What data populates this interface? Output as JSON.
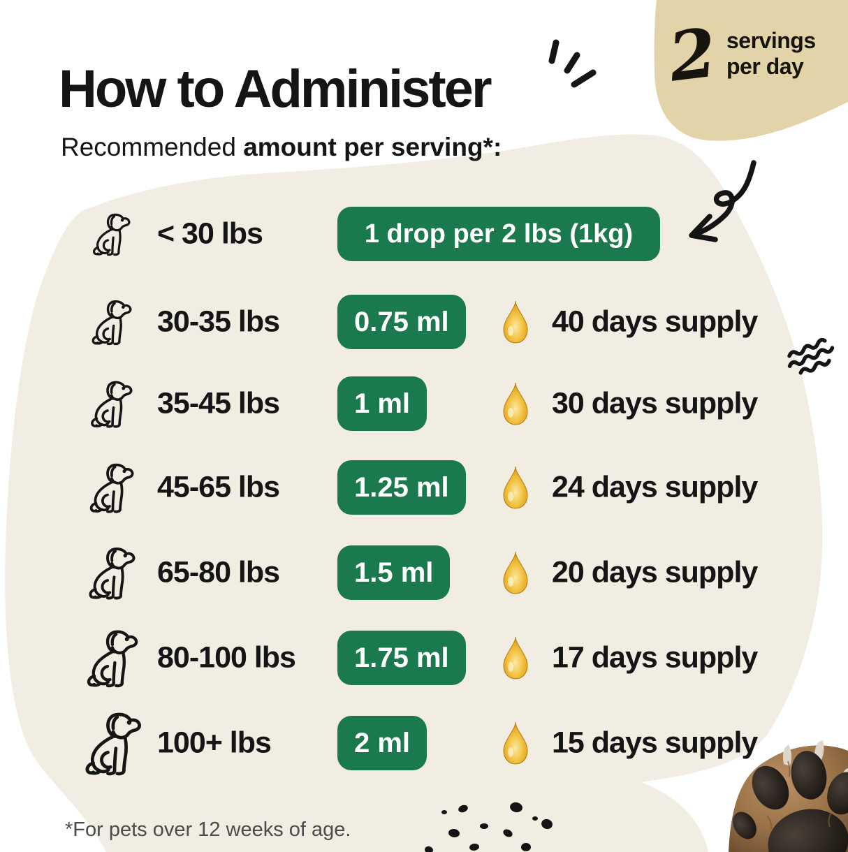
{
  "header": {
    "title": "How to Administer",
    "subtitle_regular": "Recommended ",
    "subtitle_bold": "amount per serving*:"
  },
  "badge": {
    "number": "2",
    "line1": "servings",
    "line2": "per day"
  },
  "table": {
    "rows": [
      {
        "weight": "< 30 lbs",
        "dose": "1 drop per 2 lbs (1kg)",
        "supply": "",
        "has_drop": false
      },
      {
        "weight": "30-35 lbs",
        "dose": "0.75 ml",
        "supply": "40 days supply",
        "has_drop": true
      },
      {
        "weight": "35-45 lbs",
        "dose": "1 ml",
        "supply": "30 days supply",
        "has_drop": true
      },
      {
        "weight": "45-65 lbs",
        "dose": "1.25 ml",
        "supply": "24 days supply",
        "has_drop": true
      },
      {
        "weight": "65-80 lbs",
        "dose": "1.5 ml",
        "supply": "20 days supply",
        "has_drop": true
      },
      {
        "weight": "80-100 lbs",
        "dose": "1.75 ml",
        "supply": "17 days supply",
        "has_drop": true
      },
      {
        "weight": "100+ lbs",
        "dose": "2 ml",
        "supply": "15 days supply",
        "has_drop": true
      }
    ]
  },
  "footnote": "*For pets over 12 weeks of age.",
  "colors": {
    "pill_green": "#1b7a4d",
    "cream_blob": "#f1ede3",
    "badge_tan": "#e3d3a8",
    "ink": "#151515",
    "footnote_gray": "#4b4b4b",
    "oil_gold": "#eebc2e"
  },
  "icons": {
    "row_icon": "dog-icon",
    "dose_icon": "oil-drop-icon",
    "pointer": "curved-arrow-icon",
    "accents": [
      "title-emphasis-strokes-icon",
      "squiggle-icon",
      "ink-speckles",
      "dog-paw-photo"
    ]
  }
}
